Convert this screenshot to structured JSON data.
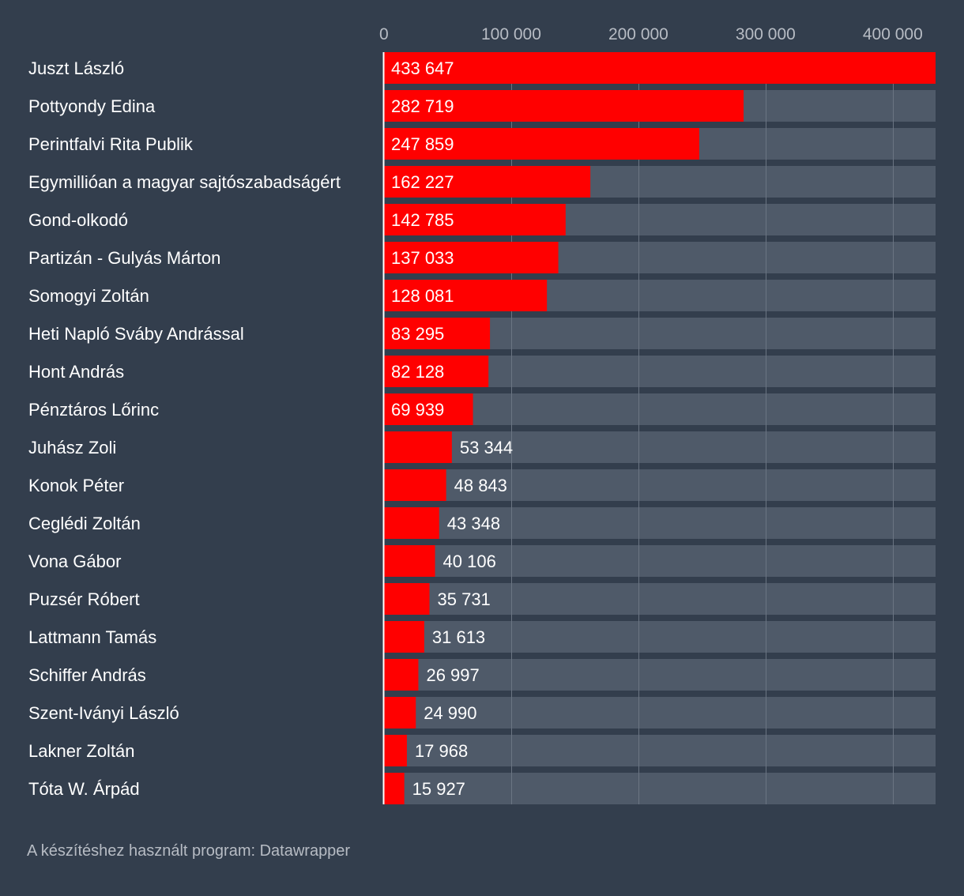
{
  "chart_data": {
    "type": "bar",
    "orientation": "horizontal",
    "categories": [
      "Juszt László",
      "Pottyondy Edina",
      "Perintfalvi Rita Publik",
      "Egymillióan a magyar sajtószabadságért",
      "Gond-olkodó",
      "Partizán - Gulyás Márton",
      "Somogyi Zoltán",
      "Heti Napló Sváby Andrással",
      "Hont András",
      "Pénztáros Lőrinc",
      "Juhász Zoli",
      "Konok Péter",
      "Ceglédi Zoltán",
      "Vona Gábor",
      "Puzsér Róbert",
      "Lattmann Tamás",
      "Schiffer András",
      "Szent-Iványi László",
      "Lakner Zoltán",
      "Tóta W. Árpád"
    ],
    "values": [
      433647,
      282719,
      247859,
      162227,
      142785,
      137033,
      128081,
      83295,
      82128,
      69939,
      53344,
      48843,
      43348,
      40106,
      35731,
      31613,
      26997,
      24990,
      17968,
      15927
    ],
    "value_labels": [
      "433 647",
      "282 719",
      "247 859",
      "162 227",
      "142 785",
      "137 033",
      "128 081",
      "83 295",
      "82 128",
      "69 939",
      "53 344",
      "48 843",
      "43 348",
      "40 106",
      "35 731",
      "31 613",
      "26 997",
      "24 990",
      "17 968",
      "15 927"
    ],
    "xlim": [
      0,
      433647
    ],
    "x_ticks": [
      0,
      100000,
      200000,
      300000,
      400000
    ],
    "x_tick_labels": [
      "0",
      "100 000",
      "200 000",
      "300 000",
      "400 000"
    ],
    "title": "",
    "xlabel": "",
    "ylabel": "",
    "grid": true,
    "bar_color": "#ff0000",
    "track_color": "#4f5a69",
    "background_color": "#333e4d"
  },
  "footer": {
    "text": "A készítéshez használt program: Datawrapper"
  }
}
